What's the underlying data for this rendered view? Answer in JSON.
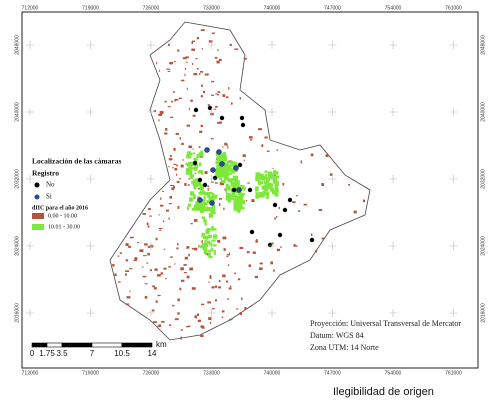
{
  "map": {
    "x_labels": [
      "712000",
      "719000",
      "726000",
      "733000",
      "740000",
      "747000",
      "754000",
      "761000"
    ],
    "y_labels": [
      "2048000",
      "2040000",
      "2032000",
      "2024000",
      "2016000"
    ],
    "legend": {
      "title": "Localización de las cámaras",
      "subtitle": "Registro",
      "no": "No",
      "si": "Si",
      "index_title": "dIIC para el año 2016",
      "range_low": "0.00 - 10.00",
      "range_high": "10.01 - 30.00"
    },
    "scale_bar": {
      "labels": [
        "0",
        "1.75",
        "3.5",
        "7",
        "10.5",
        "14"
      ],
      "unit": "km"
    },
    "projection": [
      "Proyección: Universal Transversal de Mercator",
      "Datum: WGS 84",
      "Zona UTM: 14 Norte"
    ],
    "caption": "Ilegibilidad de origen"
  }
}
